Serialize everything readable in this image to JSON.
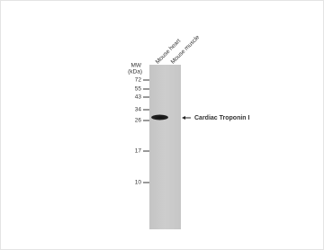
{
  "lanes": [
    "Mouse heart",
    "Mouse muscle"
  ],
  "mw": {
    "title": "MW",
    "unit": "(kDa)",
    "markers": [
      "72",
      "55",
      "43",
      "34",
      "26",
      "17",
      "10"
    ]
  },
  "band": {
    "label": "Cardiac Troponin I"
  }
}
